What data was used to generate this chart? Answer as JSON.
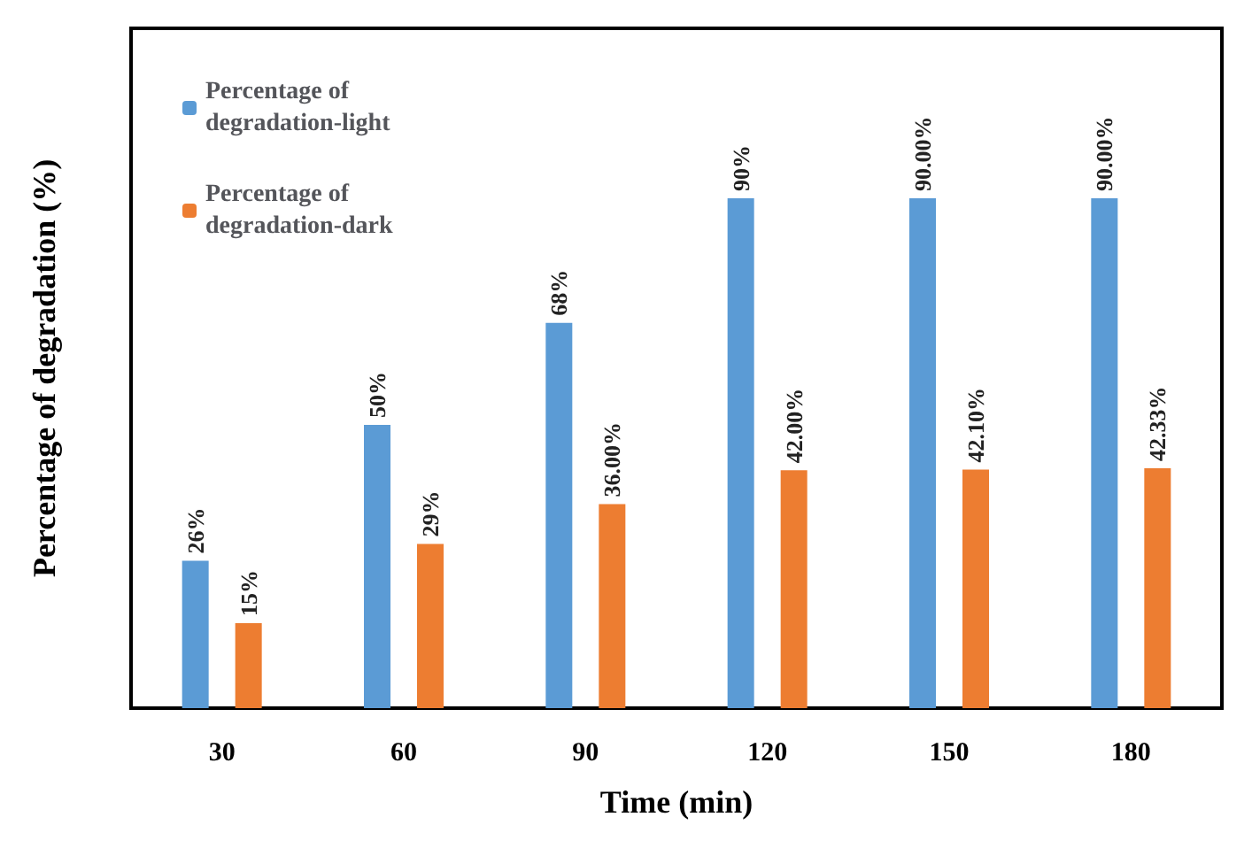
{
  "chart_data": {
    "type": "bar",
    "xlabel": "Time (min)",
    "ylabel": "Percentage of degradation (%)",
    "categories": [
      "30",
      "60",
      "90",
      "120",
      "150",
      "180"
    ],
    "series": [
      {
        "name": "Percentage of degradation-light",
        "color": "#5b9bd5",
        "values": [
          26,
          50,
          68,
          90,
          90,
          90
        ],
        "value_labels": [
          "26%",
          "50%",
          "68%",
          "90%",
          "90.00%",
          "90.00%"
        ]
      },
      {
        "name": "Percentage of degradation-dark",
        "color": "#ed7d31",
        "values": [
          15,
          29,
          36,
          42,
          42.1,
          42.33
        ],
        "value_labels": [
          "15%",
          "29%",
          "36.00%",
          "42.00%",
          "42.10%",
          "42.33%"
        ]
      }
    ],
    "ylim": [
      0,
      120
    ],
    "legend": "top left",
    "grid": false,
    "tick_labels": "x"
  }
}
